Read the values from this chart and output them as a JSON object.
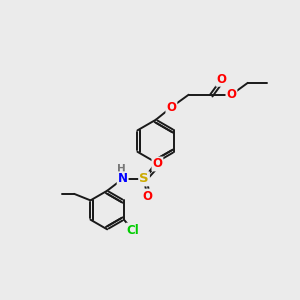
{
  "bg_color": "#ebebeb",
  "bond_color": "#1a1a1a",
  "bond_width": 1.4,
  "atom_colors": {
    "O": "#ff0000",
    "N": "#0000ff",
    "S": "#ccaa00",
    "Cl": "#00cc00",
    "H": "#777777",
    "C": "#1a1a1a"
  },
  "font_size": 8.5
}
